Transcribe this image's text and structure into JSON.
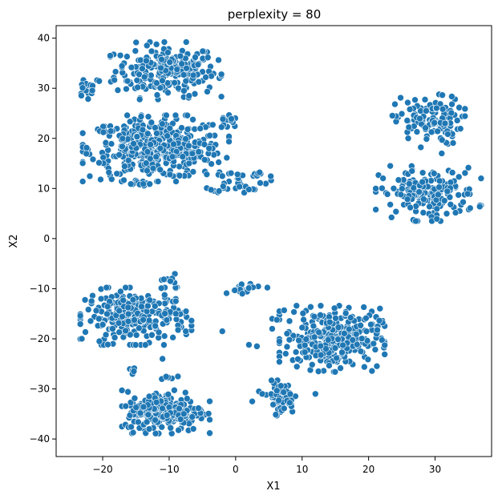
{
  "chart_data": {
    "type": "scatter",
    "title": "perplexity = 80",
    "xlabel": "X1",
    "ylabel": "X2",
    "xlim": [
      -27,
      38.5
    ],
    "ylim": [
      -43.5,
      42.5
    ],
    "xticks": [
      -20,
      -10,
      0,
      10,
      20,
      30
    ],
    "yticks": [
      -40,
      -30,
      -20,
      -10,
      0,
      10,
      20,
      30,
      40
    ],
    "grid": false,
    "legend": "none",
    "marker_color": "#1f77b4",
    "clusters": [
      {
        "cx": -10.5,
        "cy": 33.5,
        "sx": 3.8,
        "sy": 2.6,
        "n": 230
      },
      {
        "cx": -12.0,
        "cy": 18.0,
        "sx": 5.0,
        "sy": 3.0,
        "n": 420
      },
      {
        "cx": -22.0,
        "cy": 30.5,
        "sx": 1.0,
        "sy": 1.2,
        "n": 20
      },
      {
        "cx": -6.0,
        "cy": 34.5,
        "sx": 0.8,
        "sy": 0.9,
        "n": 6
      },
      {
        "cx": -14.0,
        "cy": 10.8,
        "sx": 0.8,
        "sy": 0.4,
        "n": 10
      },
      {
        "cx": -1.5,
        "cy": 23.2,
        "sx": 0.9,
        "sy": 0.8,
        "n": 14
      },
      {
        "cx": 0.5,
        "cy": 11.5,
        "sx": 2.2,
        "sy": 1.2,
        "n": 35
      },
      {
        "cx": 3.0,
        "cy": 13.0,
        "sx": 0.6,
        "sy": 0.4,
        "n": 5
      },
      {
        "cx": 29.0,
        "cy": 23.5,
        "sx": 2.5,
        "sy": 2.4,
        "n": 120
      },
      {
        "cx": 29.0,
        "cy": 9.0,
        "sx": 3.6,
        "sy": 2.5,
        "n": 170
      },
      {
        "cx": -15.0,
        "cy": -15.5,
        "sx": 3.8,
        "sy": 2.6,
        "n": 260
      },
      {
        "cx": -10.0,
        "cy": -8.8,
        "sx": 1.0,
        "sy": 0.8,
        "n": 14
      },
      {
        "cx": 14.5,
        "cy": -20.0,
        "sx": 3.6,
        "sy": 3.0,
        "n": 330
      },
      {
        "cx": -10.5,
        "cy": -34.5,
        "sx": 3.0,
        "sy": 2.0,
        "n": 230
      },
      {
        "cx": 6.8,
        "cy": -31.8,
        "sx": 1.0,
        "sy": 1.6,
        "n": 60
      },
      {
        "cx": 1.2,
        "cy": -9.8,
        "sx": 1.7,
        "sy": 0.5,
        "n": 22
      },
      {
        "cx": -16.0,
        "cy": -26.5,
        "sx": 0.6,
        "sy": 0.4,
        "n": 6
      },
      {
        "cx": -10.0,
        "cy": -27.5,
        "sx": 0.6,
        "sy": 0.3,
        "n": 6
      }
    ],
    "points": [
      {
        "x": -4.5,
        "y": 32.2
      },
      {
        "x": -7.0,
        "y": 28.5
      },
      {
        "x": 31.0,
        "y": 17.0
      },
      {
        "x": -4.0,
        "y": 18.0
      },
      {
        "x": -7.0,
        "y": 15.0
      },
      {
        "x": -2.5,
        "y": 9.5
      },
      {
        "x": 2.0,
        "y": 9.8
      },
      {
        "x": -9.0,
        "y": -12.5
      },
      {
        "x": -9.0,
        "y": -15.0
      },
      {
        "x": -7.5,
        "y": -18.5
      },
      {
        "x": -2.0,
        "y": -18.5
      },
      {
        "x": 2.0,
        "y": -21.2
      },
      {
        "x": 3.2,
        "y": -21.5
      },
      {
        "x": 5.5,
        "y": -16.0
      },
      {
        "x": 6.2,
        "y": -16.2
      },
      {
        "x": 5.5,
        "y": -18.0
      },
      {
        "x": 7.3,
        "y": -14.3
      },
      {
        "x": 12.0,
        "y": -31.0
      },
      {
        "x": 2.5,
        "y": -32.5
      },
      {
        "x": 3.5,
        "y": -30.5
      },
      {
        "x": 4.0,
        "y": -31.0
      },
      {
        "x": -13.0,
        "y": -31.5
      },
      {
        "x": -13.0,
        "y": -38.0
      },
      {
        "x": 1.0,
        "y": -11.0
      },
      {
        "x": -11.0,
        "y": -24.0
      },
      {
        "x": -20.5,
        "y": -20.5
      },
      {
        "x": -18.5,
        "y": -18.0
      }
    ]
  }
}
